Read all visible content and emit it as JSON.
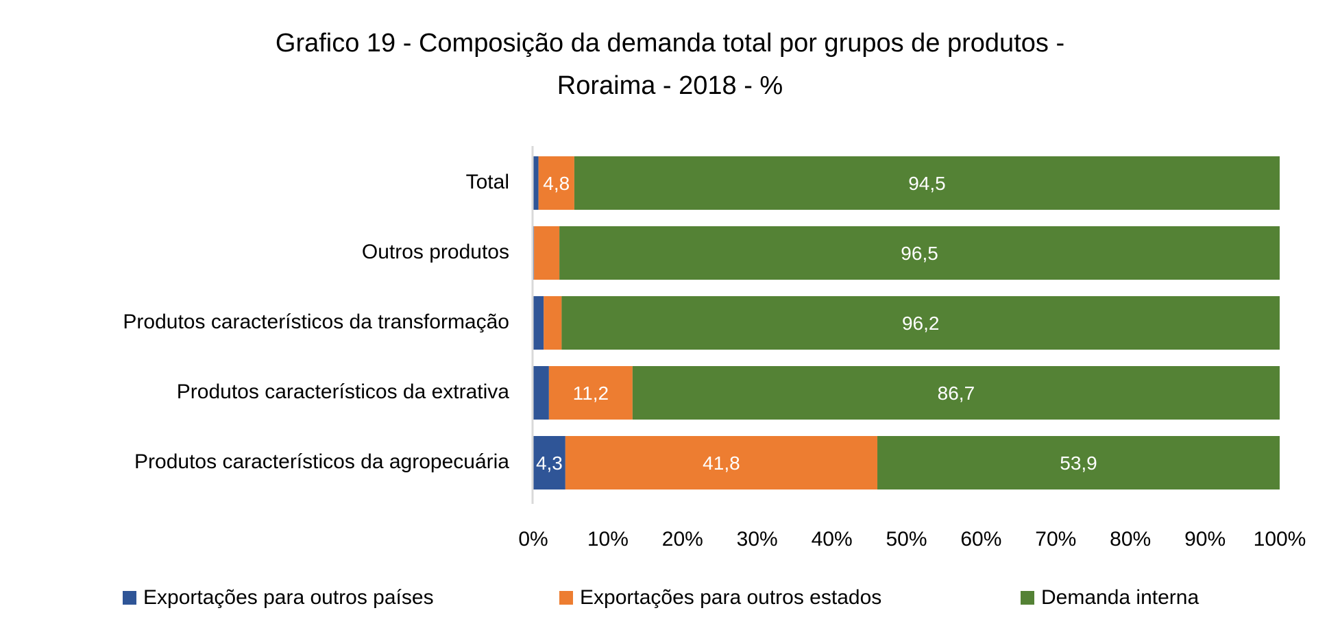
{
  "chart_data": {
    "type": "bar",
    "orientation": "horizontal",
    "stacked": "percent",
    "title": "Grafico 19 - Composição da demanda total por grupos de produtos - Roraima  - 2018 - %",
    "title_lines": [
      "Grafico 19 - Composição da demanda total por grupos de produtos -",
      "Roraima  - 2018 - %"
    ],
    "categories": [
      "Total",
      "Outros produtos",
      "Produtos característicos da transformação",
      "Produtos característicos da extrativa",
      "Produtos característicos da agropecuária"
    ],
    "series": [
      {
        "name": "Exportações para outros países",
        "color": "#2F5597",
        "values": [
          0.7,
          0.1,
          1.4,
          2.1,
          4.3
        ],
        "labels": [
          "",
          "",
          "",
          "",
          "4,3"
        ]
      },
      {
        "name": "Exportações para outros estados",
        "color": "#ED7D31",
        "values": [
          4.8,
          3.4,
          2.4,
          11.2,
          41.8
        ],
        "labels": [
          "4,8",
          "",
          "",
          "11,2",
          "41,8"
        ]
      },
      {
        "name": "Demanda interna",
        "color": "#548235",
        "values": [
          94.5,
          96.5,
          96.2,
          86.7,
          53.9
        ],
        "labels": [
          "94,5",
          "96,5",
          "96,2",
          "86,7",
          "53,9"
        ]
      }
    ],
    "xlim": [
      0,
      100
    ],
    "xticks": [
      "0%",
      "10%",
      "20%",
      "30%",
      "40%",
      "50%",
      "60%",
      "70%",
      "80%",
      "90%",
      "100%"
    ],
    "grid": false,
    "legend": "bottom"
  }
}
